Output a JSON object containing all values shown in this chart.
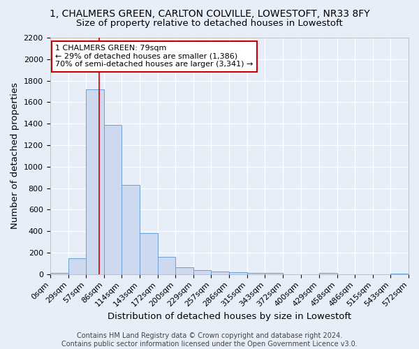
{
  "title": "1, CHALMERS GREEN, CARLTON COLVILLE, LOWESTOFT, NR33 8FY",
  "subtitle": "Size of property relative to detached houses in Lowestoft",
  "xlabel": "Distribution of detached houses by size in Lowestoft",
  "ylabel": "Number of detached properties",
  "bin_edges": [
    0,
    29,
    57,
    86,
    114,
    143,
    172,
    200,
    229,
    257,
    286,
    315,
    343,
    372,
    400,
    429,
    458,
    486,
    515,
    543,
    572
  ],
  "bar_heights": [
    10,
    150,
    1720,
    1390,
    830,
    380,
    160,
    65,
    35,
    25,
    20,
    10,
    12,
    0,
    0,
    10,
    0,
    0,
    0,
    5
  ],
  "bar_color": "#ccd9ee",
  "bar_edge_color": "#6a9fd8",
  "red_line_x": 79,
  "annotation_line1": "1 CHALMERS GREEN: 79sqm",
  "annotation_line2": "← 29% of detached houses are smaller (1,386)",
  "annotation_line3": "70% of semi-detached houses are larger (3,341) →",
  "annotation_box_color": "white",
  "annotation_box_edge_color": "#cc0000",
  "ylim": [
    0,
    2200
  ],
  "yticks": [
    0,
    200,
    400,
    600,
    800,
    1000,
    1200,
    1400,
    1600,
    1800,
    2000,
    2200
  ],
  "footer_line1": "Contains HM Land Registry data © Crown copyright and database right 2024.",
  "footer_line2": "Contains public sector information licensed under the Open Government Licence v3.0.",
  "bg_color": "#e8eef8",
  "plot_bg_color": "#e8eef8",
  "grid_color": "#ffffff",
  "title_fontsize": 10,
  "subtitle_fontsize": 9.5,
  "axis_label_fontsize": 9.5,
  "tick_fontsize": 8,
  "annotation_fontsize": 8,
  "footer_fontsize": 7
}
